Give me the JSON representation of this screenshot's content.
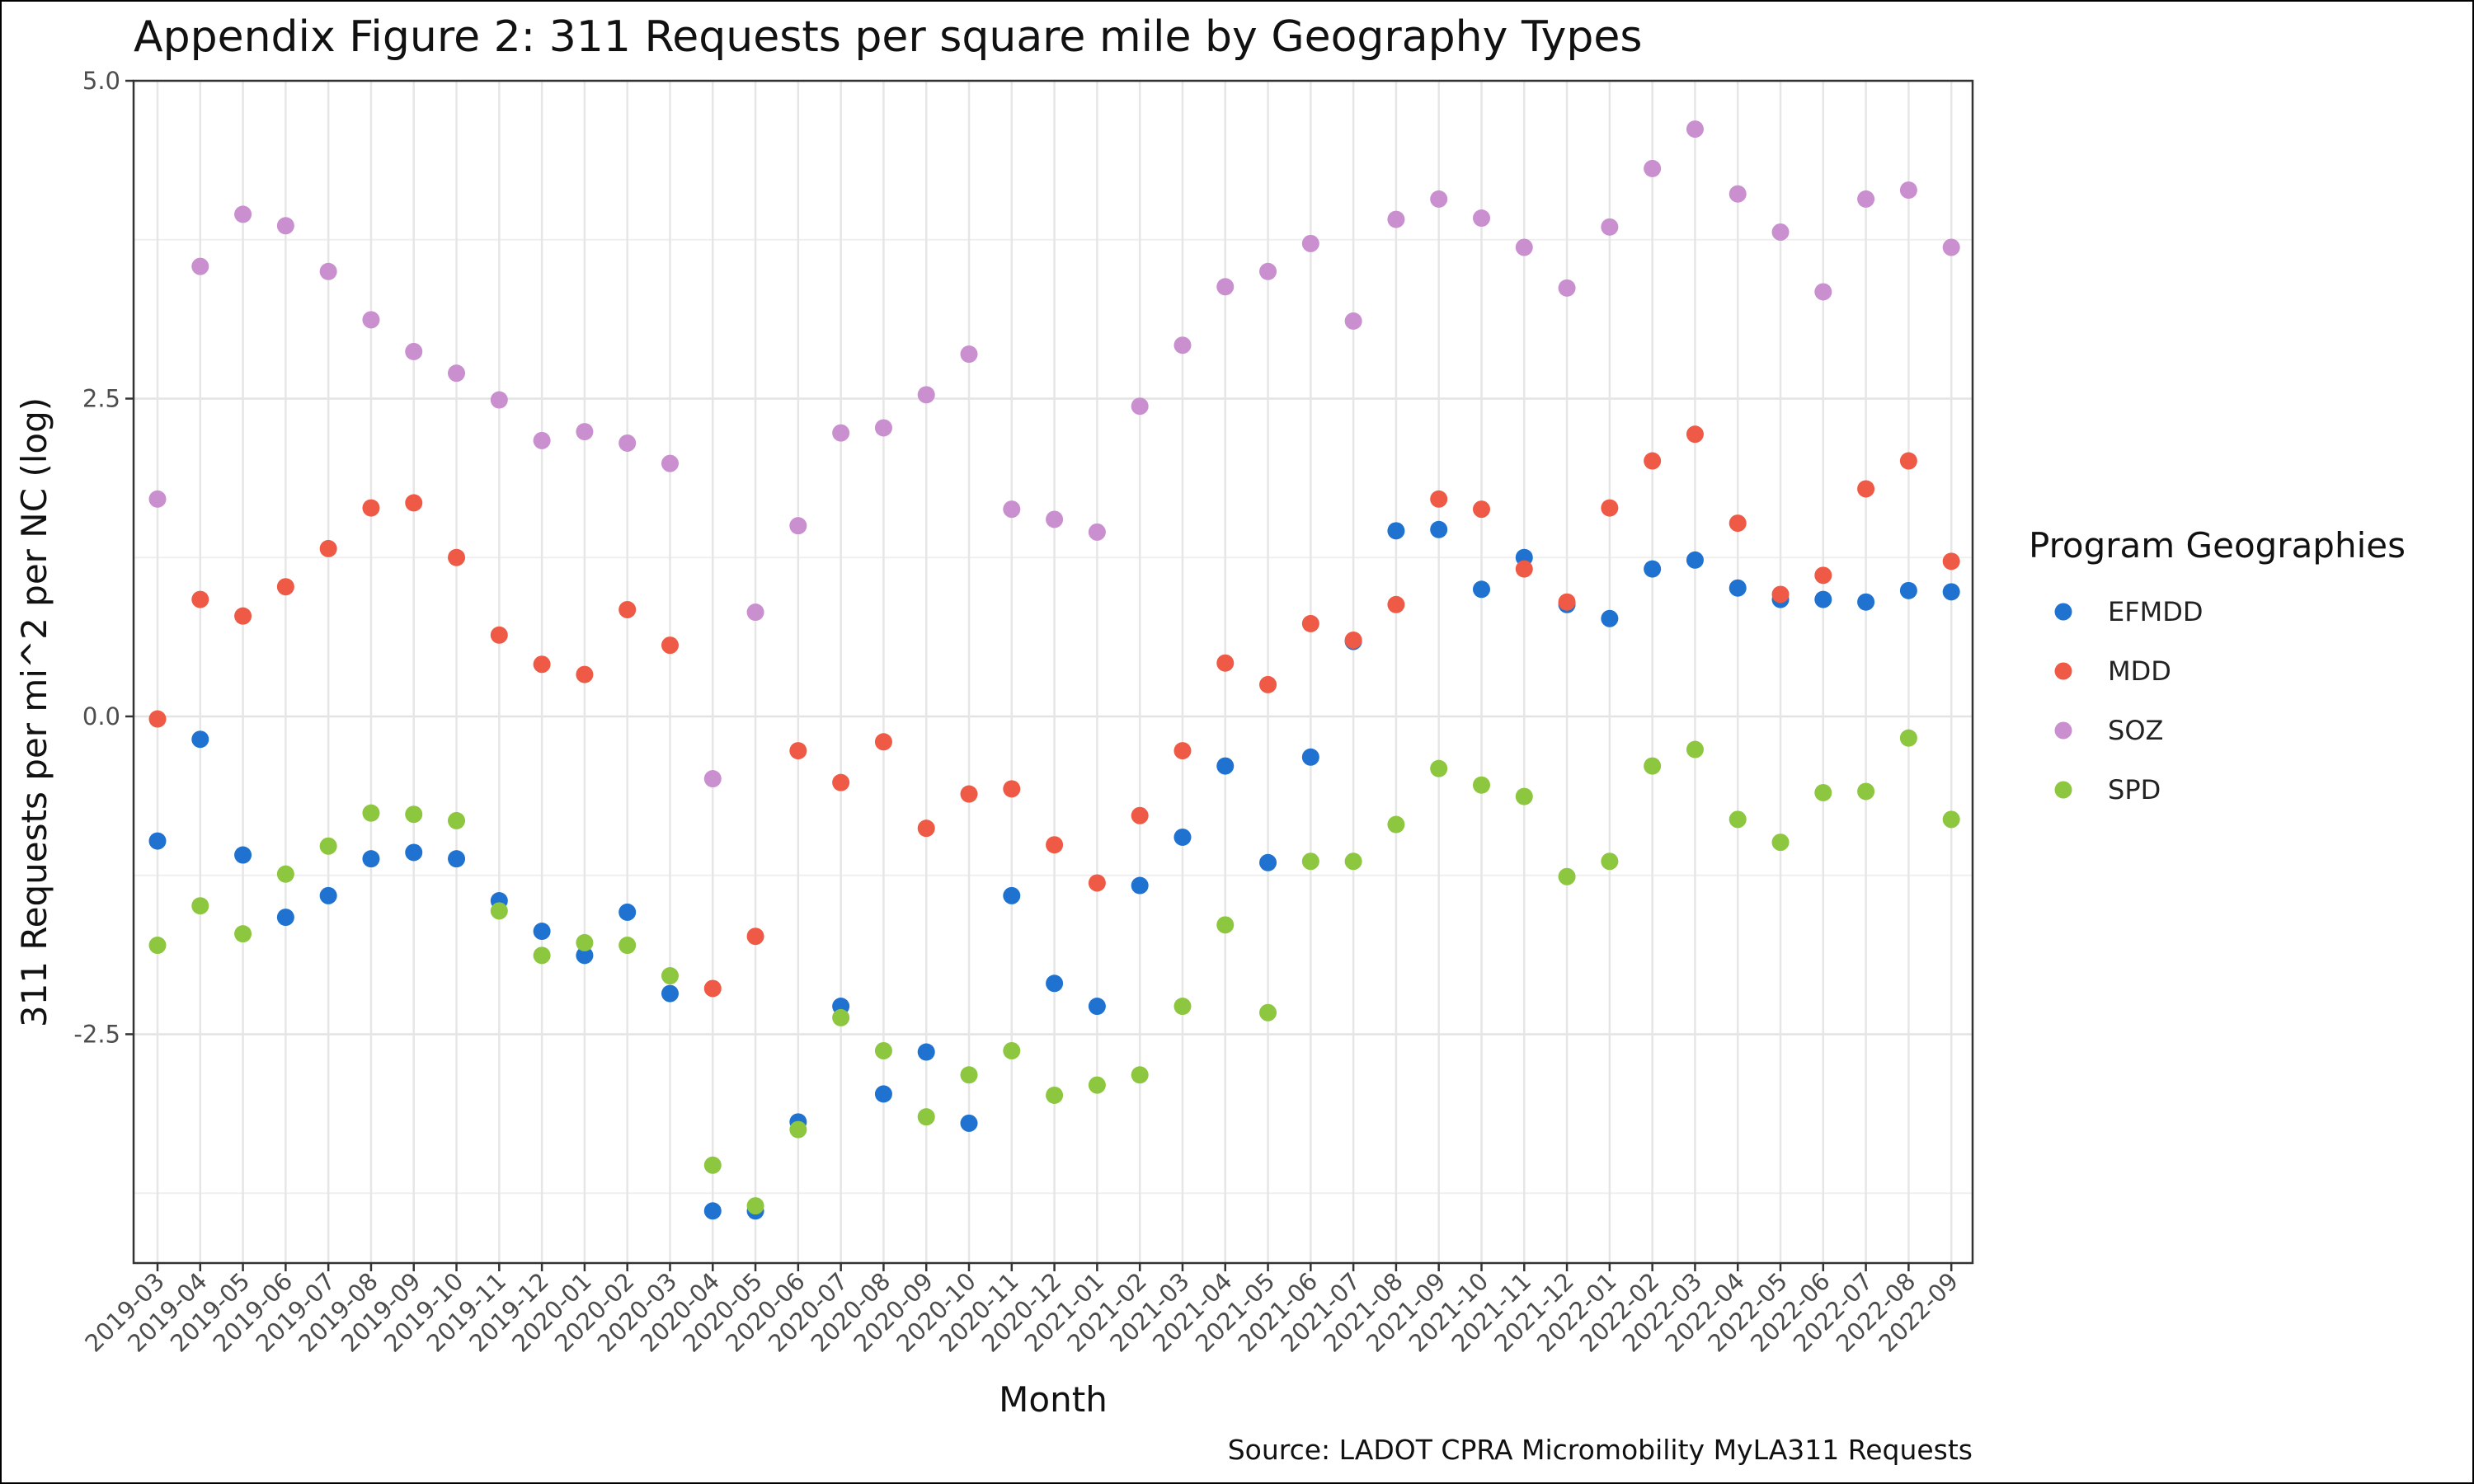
{
  "chart_data": {
    "type": "scatter",
    "title": "Appendix Figure 2: 311 Requests per square mile by Geography Types",
    "xlabel": "Month",
    "ylabel": "311 Requests per mi^2 per NC (log)",
    "caption": "Source: LADOT CPRA Micromobility MyLA311 Requests",
    "ylim": [
      -4.3,
      5.0
    ],
    "yticks": [
      5.0,
      2.5,
      0.0,
      -2.5
    ],
    "ytick_labels": [
      "5.0",
      "2.5",
      "0.0",
      "-2.5"
    ],
    "grid": true,
    "legend_position": "right",
    "legend_title": "Program Geographies",
    "categories": [
      "2019-03",
      "2019-04",
      "2019-05",
      "2019-06",
      "2019-07",
      "2019-08",
      "2019-09",
      "2019-10",
      "2019-11",
      "2019-12",
      "2020-01",
      "2020-02",
      "2020-03",
      "2020-04",
      "2020-05",
      "2020-06",
      "2020-07",
      "2020-08",
      "2020-09",
      "2020-10",
      "2020-11",
      "2020-12",
      "2021-01",
      "2021-02",
      "2021-03",
      "2021-04",
      "2021-05",
      "2021-06",
      "2021-07",
      "2021-08",
      "2021-09",
      "2021-10",
      "2021-11",
      "2021-12",
      "2022-01",
      "2022-02",
      "2022-03",
      "2022-04",
      "2022-05",
      "2022-06",
      "2022-07",
      "2022-08",
      "2022-09"
    ],
    "series": [
      {
        "name": "EFMDD",
        "color": "#1f72d0",
        "values": [
          -0.98,
          -0.18,
          -1.09,
          -1.58,
          -1.41,
          -1.12,
          -1.07,
          -1.12,
          -1.45,
          -1.69,
          -1.88,
          -1.54,
          -2.18,
          -3.89,
          -3.89,
          -3.19,
          -2.28,
          -2.97,
          -2.64,
          -3.2,
          -1.41,
          -2.1,
          -2.28,
          -1.33,
          -0.95,
          -0.39,
          -1.15,
          -0.32,
          0.59,
          1.46,
          1.47,
          1.0,
          1.25,
          0.88,
          0.77,
          1.16,
          1.23,
          1.01,
          0.92,
          0.92,
          0.9,
          0.99,
          0.98
        ]
      },
      {
        "name": "MDD",
        "color": "#ee5a45",
        "values": [
          -0.02,
          0.92,
          0.79,
          1.02,
          1.32,
          1.64,
          1.68,
          1.25,
          0.64,
          0.41,
          0.33,
          0.84,
          0.56,
          -2.14,
          -1.73,
          -0.27,
          -0.52,
          -0.2,
          -0.88,
          -0.61,
          -0.57,
          -1.01,
          -1.31,
          -0.78,
          -0.27,
          0.42,
          0.25,
          0.73,
          0.6,
          0.88,
          1.71,
          1.63,
          1.16,
          0.9,
          1.64,
          2.01,
          2.22,
          1.52,
          0.96,
          1.11,
          1.79,
          2.01,
          1.22
        ]
      },
      {
        "name": "SOZ",
        "color": "#c98fcf",
        "values": [
          1.71,
          3.54,
          3.95,
          3.86,
          3.5,
          3.12,
          2.87,
          2.7,
          2.49,
          2.17,
          2.24,
          2.15,
          1.99,
          -0.49,
          0.82,
          1.5,
          2.23,
          2.27,
          2.53,
          2.85,
          1.63,
          1.55,
          1.45,
          2.44,
          2.92,
          3.38,
          3.5,
          3.72,
          3.11,
          3.91,
          4.07,
          3.92,
          3.69,
          3.37,
          3.85,
          4.31,
          4.62,
          4.11,
          3.81,
          3.34,
          4.07,
          4.14,
          3.69
        ]
      },
      {
        "name": "SPD",
        "color": "#8dc63f",
        "values": [
          -1.8,
          -1.49,
          -1.71,
          -1.24,
          -1.02,
          -0.76,
          -0.77,
          -0.82,
          -1.53,
          -1.88,
          -1.78,
          -1.8,
          -2.04,
          -3.53,
          -3.85,
          -3.25,
          -2.37,
          -2.63,
          -3.15,
          -2.82,
          -2.63,
          -2.98,
          -2.9,
          -2.82,
          -2.28,
          -1.64,
          -2.33,
          -1.14,
          -1.14,
          -0.85,
          -0.41,
          -0.54,
          -0.63,
          -1.26,
          -1.14,
          -0.39,
          -0.26,
          -0.81,
          -0.99,
          -0.6,
          -0.59,
          -0.17,
          -0.81
        ]
      }
    ]
  }
}
